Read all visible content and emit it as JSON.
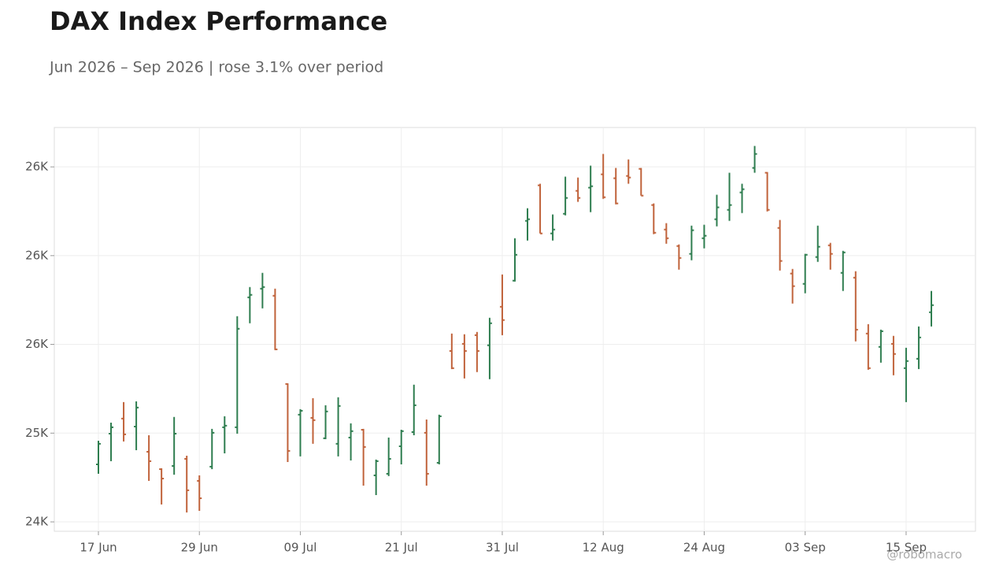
{
  "chart_data": {
    "type": "ohlc",
    "title": "DAX Index Performance",
    "subtitle": "Jun 2026 – Sep 2026 | rose 3.1% over period",
    "watermark": "@robomacro",
    "categories": [
      "17 Jun",
      null,
      null,
      null,
      null,
      null,
      null,
      null,
      "29 Jun",
      null,
      null,
      null,
      null,
      null,
      null,
      null,
      "09 Jul",
      null,
      null,
      null,
      null,
      null,
      null,
      null,
      "21 Jul",
      null,
      null,
      null,
      null,
      null,
      null,
      null,
      "31 Jul",
      null,
      null,
      null,
      null,
      null,
      null,
      null,
      "12 Aug",
      null,
      null,
      null,
      null,
      null,
      null,
      null,
      "24 Aug",
      null,
      null,
      null,
      null,
      null,
      null,
      null,
      "03 Sep",
      null,
      null,
      null,
      null,
      null,
      null,
      null,
      "15 Sep",
      null,
      null
    ],
    "open": [
      24824,
      24997,
      25082,
      25037,
      24895,
      24797,
      24815,
      24855,
      24731,
      24811,
      25033,
      25033,
      25765,
      25814,
      25774,
      25277,
      25104,
      25086,
      24971,
      24940,
      24975,
      25019,
      24762,
      24771,
      24926,
      25006,
      25002,
      24833,
      25463,
      25503,
      25552,
      25495,
      25712,
      25859,
      26196,
      26396,
      26125,
      26236,
      26365,
      26383,
      26458,
      26436,
      26449,
      26489,
      26285,
      26147,
      26054,
      26010,
      26098,
      26205,
      26258,
      26356,
      26494,
      26467,
      26156,
      25899,
      25841,
      25992,
      26058,
      25903,
      25876,
      25561,
      25486,
      25503,
      25366,
      25419,
      25681
    ],
    "high": [
      24957,
      25059,
      25175,
      25179,
      24988,
      24802,
      25091,
      24873,
      24762,
      25024,
      25095,
      25659,
      25823,
      25903,
      25814,
      25281,
      25135,
      25197,
      25157,
      25202,
      25055,
      25024,
      24851,
      24975,
      25019,
      25273,
      25077,
      25104,
      25561,
      25557,
      25570,
      25650,
      25894,
      26098,
      26267,
      26405,
      26232,
      26445,
      26440,
      26507,
      26573,
      26494,
      26542,
      26494,
      26294,
      26183,
      26063,
      26169,
      26174,
      26343,
      26467,
      26405,
      26618,
      26471,
      26201,
      25925,
      26010,
      26169,
      26072,
      26027,
      25912,
      25614,
      25583,
      25548,
      25481,
      25601,
      25801
    ],
    "low": [
      24771,
      24842,
      24953,
      24904,
      24731,
      24598,
      24766,
      24553,
      24562,
      24797,
      24886,
      24997,
      25619,
      25703,
      25468,
      24837,
      24869,
      24940,
      24966,
      24869,
      24846,
      24704,
      24651,
      24758,
      24824,
      24988,
      24704,
      24824,
      25361,
      25308,
      25344,
      25304,
      25552,
      25854,
      26085,
      26125,
      26085,
      26227,
      26303,
      26245,
      26320,
      26289,
      26405,
      26338,
      26121,
      26067,
      25921,
      25974,
      26041,
      26165,
      26196,
      26240,
      26467,
      26249,
      25916,
      25730,
      25788,
      25965,
      25921,
      25801,
      25517,
      25357,
      25397,
      25326,
      25175,
      25361,
      25601
    ],
    "close": [
      24940,
      25033,
      24993,
      25144,
      24842,
      24744,
      24997,
      24678,
      24633,
      25002,
      25042,
      25588,
      25779,
      25823,
      25472,
      24900,
      25126,
      25073,
      25122,
      25153,
      25011,
      24922,
      24842,
      24855,
      25011,
      25157,
      24771,
      25095,
      25366,
      25463,
      25463,
      25619,
      25637,
      26005,
      26205,
      26125,
      26147,
      26325,
      26325,
      26391,
      26329,
      26294,
      26440,
      26338,
      26129,
      26098,
      25987,
      26143,
      26112,
      26272,
      26285,
      26374,
      26573,
      26258,
      25970,
      25828,
      26005,
      26050,
      26010,
      26018,
      25583,
      25366,
      25574,
      25446,
      25406,
      25539,
      25721
    ],
    "up_color": "#2e7d4f",
    "down_color": "#c0623a",
    "ylim": [
      24447,
      26722
    ],
    "yticks": [
      {
        "value": 24500,
        "label": "24K"
      },
      {
        "value": 25000,
        "label": "25K"
      },
      {
        "value": 25500,
        "label": "26K"
      },
      {
        "value": 26000,
        "label": "26K"
      },
      {
        "value": 26500,
        "label": "26K"
      }
    ],
    "grid": true
  }
}
